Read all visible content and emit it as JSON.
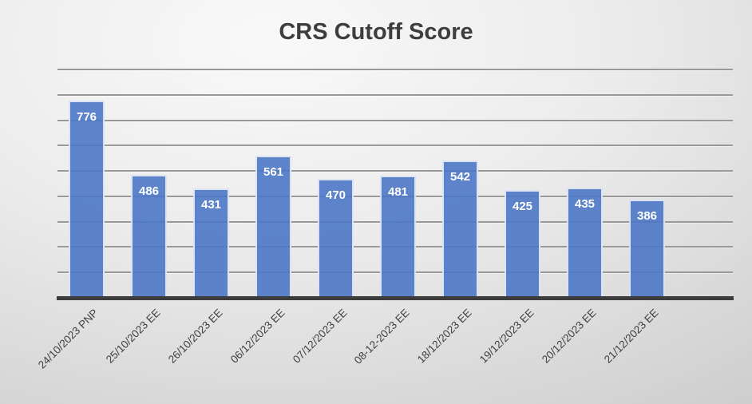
{
  "chart_data": {
    "type": "bar",
    "title": "CRS Cutoff Score",
    "categories": [
      "24/10/2023 PNP",
      "25/10/2023 EE",
      "26/10/2023 EE",
      "06/12/2023 EE",
      "07/12/2023 EE",
      "08-12-2023 EE",
      "18/12/2023 EE",
      "19/12/2023 EE",
      "20/12/2023 EE",
      "21/12/2023 EE"
    ],
    "values": [
      776,
      486,
      431,
      561,
      470,
      481,
      542,
      425,
      435,
      386
    ],
    "xlabel": "",
    "ylabel": "",
    "ylim": [
      0,
      900
    ],
    "gridline_interval": 100,
    "grid": true,
    "data_labels": true,
    "legend_position": "none",
    "colors": {
      "bar_fill": "rgba(76,120,198,0.9)",
      "bar_border": "#DCE3F3",
      "value_label": "#FFFFFF",
      "gridline": "#999999",
      "axis_line": "#3C3C3C",
      "title": "#3D3D3D",
      "tick_label": "#404040"
    }
  }
}
